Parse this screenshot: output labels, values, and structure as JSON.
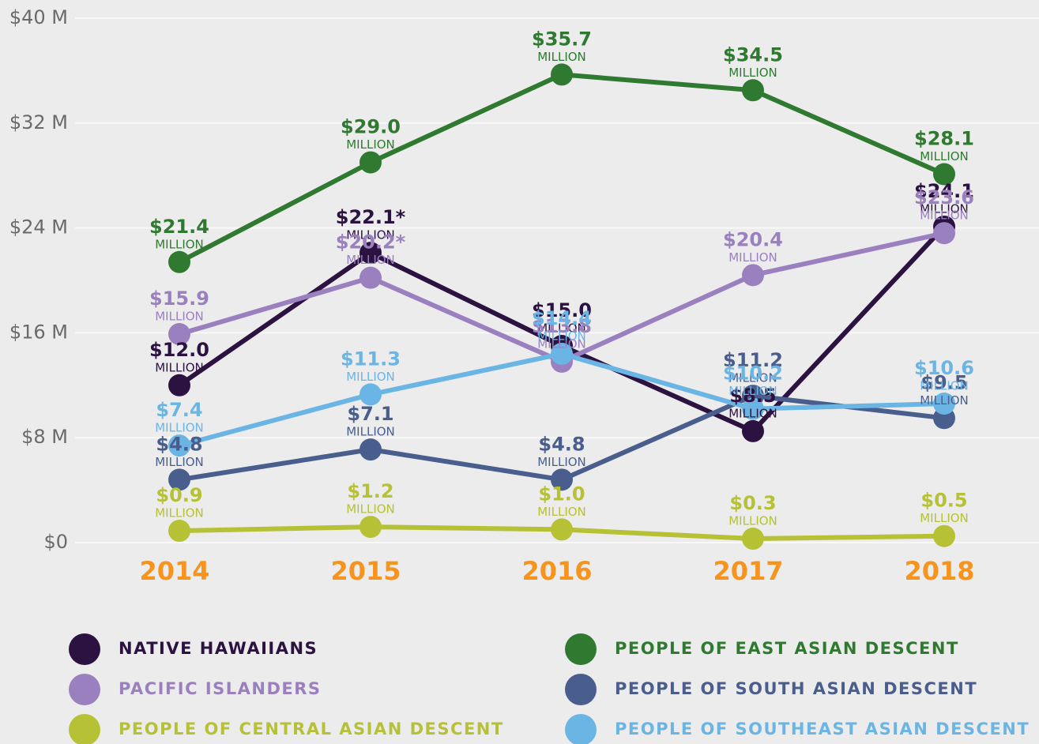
{
  "chart_data": {
    "type": "line",
    "categories": [
      "2014",
      "2015",
      "2016",
      "2017",
      "2018"
    ],
    "ylim": [
      0,
      40
    ],
    "yticks": [
      {
        "value": 0,
        "label": "$0"
      },
      {
        "value": 8,
        "label": "$8 M"
      },
      {
        "value": 16,
        "label": "$16 M"
      },
      {
        "value": 24,
        "label": "$24 M"
      },
      {
        "value": 32,
        "label": "$32 M"
      },
      {
        "value": 40,
        "label": "$40 M"
      }
    ],
    "grid": true,
    "value_label_unit": "MILLION",
    "series": [
      {
        "name": "NATIVE HAWAIIANS",
        "color": "#2b1240",
        "values": [
          12.0,
          22.1,
          15.0,
          8.5,
          24.1
        ],
        "value_labels": [
          "$12.0",
          "$22.1*",
          "$15.0",
          "$8.5",
          "$24.1"
        ]
      },
      {
        "name": "PACIFIC ISLANDERS",
        "color": "#9b80bf",
        "values": [
          15.9,
          20.2,
          13.8,
          20.4,
          23.6
        ],
        "value_labels": [
          "$15.9",
          "$20.2*",
          "$13.8",
          "$20.4",
          "$23.6"
        ]
      },
      {
        "name": "PEOPLE OF CENTRAL ASIAN DESCENT",
        "color": "#b6c135",
        "values": [
          0.9,
          1.2,
          1.0,
          0.3,
          0.5
        ],
        "value_labels": [
          "$0.9",
          "$1.2",
          "$1.0",
          "$0.3",
          "$0.5"
        ]
      },
      {
        "name": "PEOPLE OF EAST ASIAN DESCENT",
        "color": "#2f7a30",
        "values": [
          21.4,
          29.0,
          35.7,
          34.5,
          28.1
        ],
        "value_labels": [
          "$21.4",
          "$29.0",
          "$35.7",
          "$34.5",
          "$28.1"
        ]
      },
      {
        "name": "PEOPLE OF SOUTH ASIAN DESCENT",
        "color": "#4a5e8e",
        "values": [
          4.8,
          7.1,
          4.8,
          11.2,
          9.5
        ],
        "value_labels": [
          "$4.8",
          "$7.1",
          "$4.8",
          "$11.2",
          "$9.5"
        ]
      },
      {
        "name": "PEOPLE OF SOUTHEAST ASIAN DESCENT",
        "color": "#6bb5e5",
        "values": [
          7.4,
          11.3,
          14.4,
          10.2,
          10.6
        ],
        "value_labels": [
          "$7.4",
          "$11.3",
          "$14.4",
          "$10.2",
          "$10.6"
        ]
      }
    ]
  }
}
